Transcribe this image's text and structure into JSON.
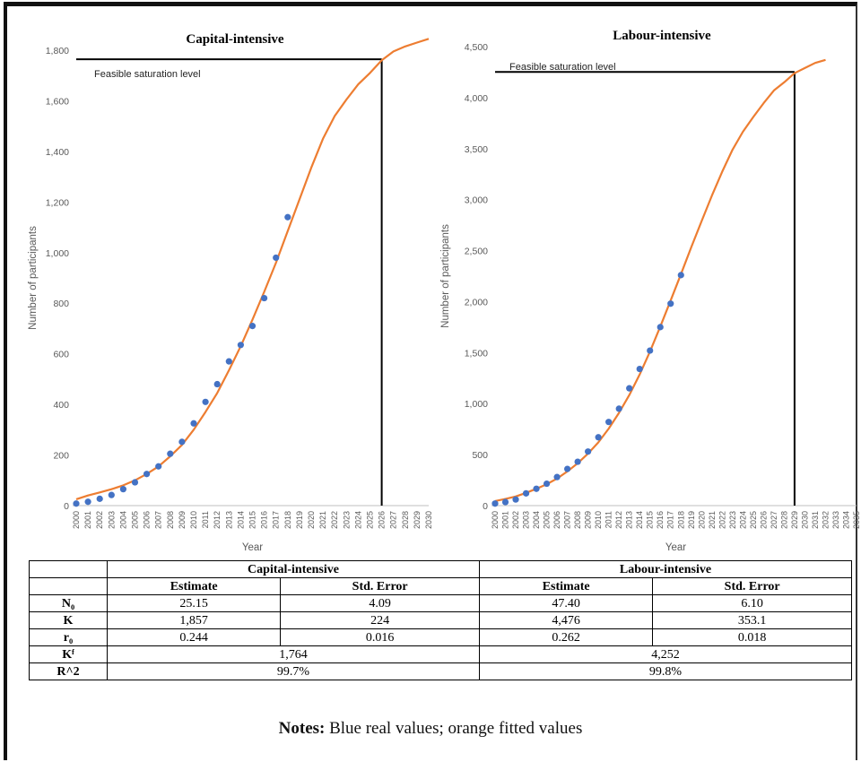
{
  "chart_data": [
    {
      "type": "line",
      "title": "Capital-intensive",
      "xlabel": "Year",
      "ylabel": "Number of participants",
      "ylim": [
        0,
        1800
      ],
      "yticks": [
        0,
        200,
        400,
        600,
        800,
        1000,
        1200,
        1400,
        1600,
        1800
      ],
      "ytick_labels": [
        "0",
        "200",
        "400",
        "600",
        "800",
        "1,000",
        "1,200",
        "1,400",
        "1,600",
        "1,800"
      ],
      "x_categories": [
        "2000",
        "2001",
        "2002",
        "2003",
        "2004",
        "2005",
        "2006",
        "2007",
        "2008",
        "2009",
        "2010",
        "2011",
        "2012",
        "2013",
        "2014",
        "2015",
        "2016",
        "2017",
        "2018",
        "2019",
        "2020",
        "2021",
        "2022",
        "2023",
        "2024",
        "2025",
        "2026",
        "2027",
        "2028",
        "2029",
        "2030"
      ],
      "series": [
        {
          "kind": "scatter",
          "color": "#4472c4",
          "x": [
            "2000",
            "2001",
            "2002",
            "2003",
            "2004",
            "2005",
            "2006",
            "2007",
            "2008",
            "2009",
            "2010",
            "2011",
            "2012",
            "2013",
            "2014",
            "2015",
            "2016",
            "2017",
            "2018"
          ],
          "values": [
            8,
            15,
            27,
            42,
            65,
            92,
            125,
            155,
            205,
            252,
            325,
            410,
            480,
            570,
            635,
            710,
            820,
            980,
            1140
          ]
        },
        {
          "kind": "line",
          "color": "#ed7d31",
          "x": [
            "2000",
            "2001",
            "2002",
            "2003",
            "2004",
            "2005",
            "2006",
            "2007",
            "2008",
            "2009",
            "2010",
            "2011",
            "2012",
            "2013",
            "2014",
            "2015",
            "2016",
            "2017",
            "2018",
            "2019",
            "2020",
            "2021",
            "2022",
            "2023",
            "2024",
            "2025",
            "2026",
            "2027",
            "2028",
            "2029",
            "2030"
          ],
          "values": [
            25,
            40,
            52,
            65,
            80,
            100,
            125,
            155,
            195,
            240,
            300,
            370,
            445,
            535,
            630,
            735,
            845,
            960,
            1085,
            1210,
            1335,
            1450,
            1540,
            1605,
            1665,
            1710,
            1760,
            1795,
            1815,
            1830,
            1845
          ]
        }
      ],
      "saturation": {
        "label": "Feasible saturation level",
        "value": 1764,
        "year": "2026"
      }
    },
    {
      "type": "line",
      "title": "Labour-intensive",
      "xlabel": "Year",
      "ylabel": "Number of participants",
      "ylim": [
        0,
        4500
      ],
      "yticks": [
        0,
        500,
        1000,
        1500,
        2000,
        2500,
        3000,
        3500,
        4000,
        4500
      ],
      "ytick_labels": [
        "0",
        "500",
        "1,000",
        "1,500",
        "2,000",
        "2,500",
        "3,000",
        "3,500",
        "4,000",
        "4,500"
      ],
      "x_categories": [
        "2000",
        "2001",
        "2002",
        "2003",
        "2004",
        "2005",
        "2006",
        "2007",
        "2008",
        "2009",
        "2010",
        "2011",
        "2012",
        "2013",
        "2014",
        "2015",
        "2016",
        "2017",
        "2018",
        "2019",
        "2020",
        "2021",
        "2022",
        "2023",
        "2024",
        "2025",
        "2026",
        "2027",
        "2028",
        "2029",
        "2030",
        "2031",
        "2032",
        "2033",
        "2034",
        "2035"
      ],
      "series": [
        {
          "kind": "scatter",
          "color": "#4472c4",
          "x": [
            "2000",
            "2001",
            "2002",
            "2003",
            "2004",
            "2005",
            "2006",
            "2007",
            "2008",
            "2009",
            "2010",
            "2011",
            "2012",
            "2013",
            "2014",
            "2015",
            "2016",
            "2017",
            "2018"
          ],
          "values": [
            20,
            35,
            60,
            120,
            165,
            215,
            280,
            360,
            430,
            530,
            670,
            820,
            950,
            1150,
            1340,
            1520,
            1750,
            1980,
            2260
          ]
        },
        {
          "kind": "line",
          "color": "#ed7d31",
          "x": [
            "2000",
            "2001",
            "2002",
            "2003",
            "2004",
            "2005",
            "2006",
            "2007",
            "2008",
            "2009",
            "2010",
            "2011",
            "2012",
            "2013",
            "2014",
            "2015",
            "2016",
            "2017",
            "2018",
            "2019",
            "2020",
            "2021",
            "2022",
            "2023",
            "2024",
            "2025",
            "2026",
            "2027",
            "2028",
            "2029",
            "2030",
            "2031",
            "2032"
          ],
          "values": [
            45,
            65,
            90,
            125,
            165,
            210,
            265,
            335,
            415,
            510,
            620,
            755,
            910,
            1085,
            1285,
            1510,
            1755,
            2010,
            2270,
            2535,
            2790,
            3040,
            3275,
            3490,
            3665,
            3810,
            3945,
            4070,
            4150,
            4240,
            4290,
            4340,
            4370
          ]
        }
      ],
      "saturation": {
        "label": "Feasible saturation level",
        "value": 4252,
        "year": "2029"
      }
    }
  ],
  "table": {
    "groups": [
      "Capital-intensive",
      "Labour-intensive"
    ],
    "subheaders": [
      "Estimate",
      "Std. Error",
      "Estimate",
      "Std. Error"
    ],
    "rows4": [
      {
        "label": "N₀",
        "cells": [
          "25.15",
          "4.09",
          "47.40",
          "6.10"
        ]
      },
      {
        "label": "K",
        "cells": [
          "1,857",
          "224",
          "4,476",
          "353.1"
        ]
      },
      {
        "label": "r₀",
        "cells": [
          "0.244",
          "0.016",
          "0.262",
          "0.018"
        ]
      }
    ],
    "rows2": [
      {
        "label": "Kᶠ",
        "cells": [
          "1,764",
          "4,252"
        ]
      },
      {
        "label": "R^2",
        "cells": [
          "99.7%",
          "99.8%"
        ]
      }
    ]
  },
  "notes": {
    "label": "Notes:",
    "text": " Blue real values; orange fitted values"
  }
}
